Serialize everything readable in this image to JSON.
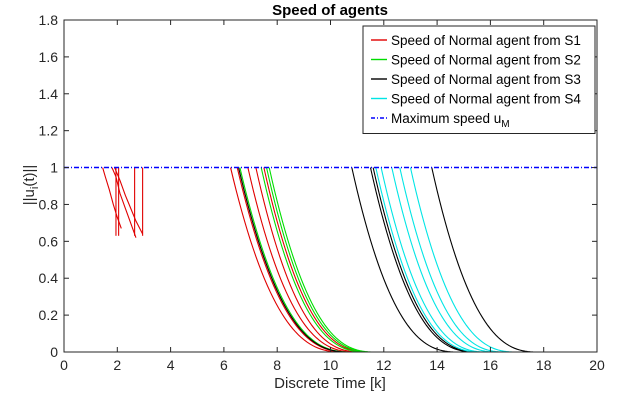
{
  "chart_data": {
    "type": "line",
    "title": "Speed of agents",
    "xlabel": "Discrete Time [k]",
    "ylabel": "||u",
    "ylabel_sub": "i",
    "ylabel_tail": "(t)||",
    "xlim": [
      0,
      20
    ],
    "ylim": [
      0,
      1.8
    ],
    "xticks": [
      "0",
      "2",
      "4",
      "6",
      "8",
      "10",
      "12",
      "14",
      "16",
      "18",
      "20"
    ],
    "yticks": [
      "0",
      "0.2",
      "0.4",
      "0.6",
      "0.8",
      "1",
      "1.2",
      "1.4",
      "1.6",
      "1.8"
    ],
    "grid": false,
    "legend_position": "top-right",
    "legend": [
      {
        "name": "Speed of Normal agent from S1",
        "color": "#e00000",
        "style": "solid"
      },
      {
        "name": "Speed of Normal agent from S2",
        "color": "#00dd00",
        "style": "solid"
      },
      {
        "name": "Speed of Normal agent from S3",
        "color": "#000000",
        "style": "solid"
      },
      {
        "name": "Speed of Normal agent from S4",
        "color": "#00e5e5",
        "style": "solid"
      },
      {
        "name": "Maximum speed u",
        "name_sub": "M",
        "color": "#0000ff",
        "style": "dashdot"
      }
    ],
    "max_speed": 1.0,
    "s1_spikes": [
      {
        "x": [
          1.45,
          1.55,
          1.7,
          1.85,
          2.0,
          2.15
        ],
        "y": [
          1.0,
          0.95,
          0.88,
          0.8,
          0.73,
          0.67
        ]
      },
      {
        "x": [
          1.8,
          1.95,
          2.1,
          2.3,
          2.5,
          2.7
        ],
        "y": [
          1.0,
          0.95,
          0.86,
          0.78,
          0.7,
          0.62
        ]
      },
      {
        "x": [
          1.9,
          2.1,
          2.3,
          2.5,
          2.7,
          2.95
        ],
        "y": [
          1.0,
          0.93,
          0.85,
          0.78,
          0.71,
          0.64
        ]
      }
    ],
    "s1_verticals": [
      1.95,
      2.05,
      2.65,
      2.95
    ],
    "decay_curves": [
      {
        "group": "S1",
        "start": 6.25,
        "end": 10.5
      },
      {
        "group": "S1",
        "start": 6.5,
        "end": 10.7
      },
      {
        "group": "S1",
        "start": 6.9,
        "end": 11.0
      },
      {
        "group": "S1",
        "start": 7.2,
        "end": 11.2
      },
      {
        "group": "S1",
        "start": 7.5,
        "end": 11.5
      },
      {
        "group": "S2",
        "start": 6.6,
        "end": 10.8
      },
      {
        "group": "S2",
        "start": 7.4,
        "end": 11.4
      },
      {
        "group": "S2",
        "start": 7.6,
        "end": 11.6
      },
      {
        "group": "S2",
        "start": 7.7,
        "end": 11.7
      },
      {
        "group": "S3",
        "start": 6.55,
        "end": 10.75
      },
      {
        "group": "S3",
        "start": 10.8,
        "end": 14.8
      },
      {
        "group": "S3",
        "start": 11.5,
        "end": 15.5
      },
      {
        "group": "S3",
        "start": 11.6,
        "end": 15.6
      },
      {
        "group": "S3",
        "start": 13.8,
        "end": 17.8
      },
      {
        "group": "S4",
        "start": 11.7,
        "end": 15.7
      },
      {
        "group": "S4",
        "start": 11.9,
        "end": 15.9
      },
      {
        "group": "S4",
        "start": 12.3,
        "end": 16.3
      },
      {
        "group": "S4",
        "start": 12.6,
        "end": 16.6
      },
      {
        "group": "S4",
        "start": 13.0,
        "end": 17.0
      }
    ]
  }
}
